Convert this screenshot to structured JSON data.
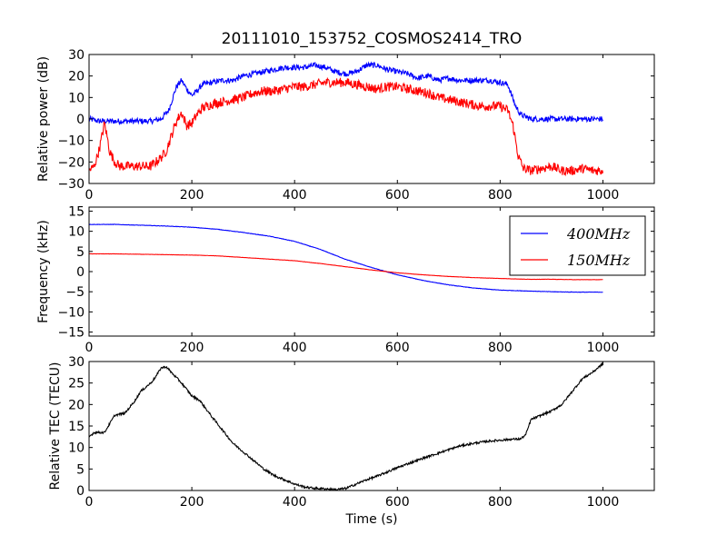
{
  "title": "20111010_153752_COSMOS2414_TRO",
  "chart_data": [
    {
      "type": "line",
      "xlabel": "",
      "ylabel": "Relative power (dB)",
      "xlim": [
        0,
        1100
      ],
      "ylim": [
        -30,
        30
      ],
      "xticks": [
        "0",
        "200",
        "400",
        "600",
        "800",
        "1000"
      ],
      "yticks": [
        "−30",
        "−20",
        "−10",
        "0",
        "10",
        "20",
        "30"
      ],
      "legend": [],
      "series": [
        {
          "color": "#0000ff",
          "noise": 1.3,
          "points": [
            [
              0,
              0
            ],
            [
              20,
              -1
            ],
            [
              40,
              -1
            ],
            [
              60,
              -1
            ],
            [
              80,
              -1
            ],
            [
              100,
              -1
            ],
            [
              120,
              -1
            ],
            [
              140,
              0
            ],
            [
              155,
              4
            ],
            [
              170,
              15
            ],
            [
              180,
              18
            ],
            [
              190,
              14
            ],
            [
              200,
              11
            ],
            [
              210,
              13
            ],
            [
              220,
              16
            ],
            [
              240,
              17
            ],
            [
              260,
              18
            ],
            [
              280,
              18
            ],
            [
              300,
              20
            ],
            [
              320,
              21
            ],
            [
              340,
              22
            ],
            [
              360,
              23
            ],
            [
              380,
              24
            ],
            [
              400,
              24
            ],
            [
              420,
              24
            ],
            [
              440,
              25
            ],
            [
              460,
              24
            ],
            [
              480,
              22
            ],
            [
              500,
              21
            ],
            [
              520,
              22
            ],
            [
              540,
              25
            ],
            [
              560,
              25
            ],
            [
              580,
              23
            ],
            [
              600,
              22
            ],
            [
              620,
              21
            ],
            [
              640,
              19
            ],
            [
              660,
              20
            ],
            [
              680,
              18
            ],
            [
              700,
              19
            ],
            [
              720,
              18
            ],
            [
              740,
              18
            ],
            [
              760,
              18
            ],
            [
              780,
              18
            ],
            [
              800,
              17
            ],
            [
              815,
              16
            ],
            [
              830,
              6
            ],
            [
              840,
              2
            ],
            [
              860,
              0
            ],
            [
              880,
              0
            ],
            [
              900,
              0
            ],
            [
              920,
              0
            ],
            [
              940,
              0
            ],
            [
              960,
              0
            ],
            [
              980,
              0
            ],
            [
              1000,
              0
            ]
          ]
        },
        {
          "color": "#ff0000",
          "noise": 2.2,
          "points": [
            [
              0,
              -24
            ],
            [
              10,
              -22
            ],
            [
              20,
              -14
            ],
            [
              30,
              -2
            ],
            [
              35,
              -8
            ],
            [
              40,
              -15
            ],
            [
              50,
              -20
            ],
            [
              60,
              -22
            ],
            [
              80,
              -22
            ],
            [
              100,
              -22
            ],
            [
              120,
              -22
            ],
            [
              140,
              -18
            ],
            [
              150,
              -15
            ],
            [
              160,
              -8
            ],
            [
              170,
              -1
            ],
            [
              180,
              3
            ],
            [
              190,
              -3
            ],
            [
              200,
              -2
            ],
            [
              210,
              2
            ],
            [
              220,
              5
            ],
            [
              240,
              7
            ],
            [
              260,
              8
            ],
            [
              280,
              9
            ],
            [
              300,
              10
            ],
            [
              320,
              12
            ],
            [
              340,
              13
            ],
            [
              360,
              13
            ],
            [
              380,
              14
            ],
            [
              400,
              15
            ],
            [
              420,
              15
            ],
            [
              440,
              16
            ],
            [
              460,
              17
            ],
            [
              480,
              17
            ],
            [
              500,
              17
            ],
            [
              520,
              16
            ],
            [
              540,
              15
            ],
            [
              560,
              14
            ],
            [
              580,
              15
            ],
            [
              600,
              15
            ],
            [
              620,
              14
            ],
            [
              640,
              13
            ],
            [
              660,
              12
            ],
            [
              680,
              10
            ],
            [
              700,
              9
            ],
            [
              720,
              8
            ],
            [
              740,
              7
            ],
            [
              760,
              6
            ],
            [
              780,
              6
            ],
            [
              800,
              6
            ],
            [
              815,
              4
            ],
            [
              825,
              -3
            ],
            [
              835,
              -17
            ],
            [
              845,
              -23
            ],
            [
              860,
              -24
            ],
            [
              880,
              -23
            ],
            [
              900,
              -22
            ],
            [
              920,
              -24
            ],
            [
              940,
              -24
            ],
            [
              960,
              -23
            ],
            [
              980,
              -24
            ],
            [
              1000,
              -24
            ]
          ]
        }
      ]
    },
    {
      "type": "line",
      "xlabel": "",
      "ylabel": "Frequency (kHz)",
      "xlim": [
        0,
        1100
      ],
      "ylim": [
        -16,
        16
      ],
      "xticks": [
        "0",
        "200",
        "400",
        "600",
        "800",
        "1000"
      ],
      "yticks": [
        "−15",
        "−10",
        "−5",
        "0",
        "5",
        "10",
        "15"
      ],
      "ytick_values": [
        -15,
        -10,
        -5,
        0,
        5,
        10,
        15
      ],
      "legend": [
        "400MHz",
        "150MHz"
      ],
      "legend_position": "top-right",
      "series": [
        {
          "name": "400MHz",
          "color": "#0000ff",
          "noise": 0.05,
          "points": [
            [
              0,
              11.7
            ],
            [
              50,
              11.7
            ],
            [
              100,
              11.5
            ],
            [
              150,
              11.3
            ],
            [
              200,
              11.0
            ],
            [
              250,
              10.5
            ],
            [
              300,
              9.7
            ],
            [
              350,
              8.8
            ],
            [
              400,
              7.5
            ],
            [
              450,
              5.5
            ],
            [
              500,
              3.0
            ],
            [
              550,
              1.0
            ],
            [
              600,
              -0.8
            ],
            [
              650,
              -2.2
            ],
            [
              700,
              -3.3
            ],
            [
              750,
              -4.1
            ],
            [
              800,
              -4.6
            ],
            [
              850,
              -4.8
            ],
            [
              900,
              -5.0
            ],
            [
              950,
              -5.1
            ],
            [
              1000,
              -5.1
            ]
          ]
        },
        {
          "name": "150MHz",
          "color": "#ff0000",
          "noise": 0.03,
          "points": [
            [
              0,
              4.4
            ],
            [
              50,
              4.4
            ],
            [
              100,
              4.3
            ],
            [
              150,
              4.2
            ],
            [
              200,
              4.1
            ],
            [
              250,
              3.9
            ],
            [
              300,
              3.5
            ],
            [
              350,
              3.1
            ],
            [
              400,
              2.7
            ],
            [
              450,
              2.0
            ],
            [
              500,
              1.2
            ],
            [
              550,
              0.4
            ],
            [
              600,
              -0.3
            ],
            [
              650,
              -0.8
            ],
            [
              700,
              -1.2
            ],
            [
              750,
              -1.5
            ],
            [
              800,
              -1.7
            ],
            [
              850,
              -1.9
            ],
            [
              900,
              -1.9
            ],
            [
              950,
              -2.0
            ],
            [
              1000,
              -2.0
            ]
          ]
        }
      ]
    },
    {
      "type": "line",
      "xlabel": "Time (s)",
      "ylabel": "Relative TEC (TECU)",
      "xlim": [
        0,
        1100
      ],
      "ylim": [
        0,
        30
      ],
      "xticks": [
        "0",
        "200",
        "400",
        "600",
        "800",
        "1000"
      ],
      "yticks": [
        "0",
        "5",
        "10",
        "15",
        "20",
        "25",
        "30"
      ],
      "legend": [],
      "series": [
        {
          "color": "#000000",
          "noise": 0.25,
          "points": [
            [
              0,
              12.5
            ],
            [
              10,
              13.5
            ],
            [
              30,
              13.5
            ],
            [
              40,
              15.5
            ],
            [
              50,
              17.5
            ],
            [
              70,
              18
            ],
            [
              90,
              21
            ],
            [
              100,
              23
            ],
            [
              110,
              24
            ],
            [
              120,
              25
            ],
            [
              130,
              26.5
            ],
            [
              140,
              28.5
            ],
            [
              150,
              28.8
            ],
            [
              160,
              27.5
            ],
            [
              180,
              25
            ],
            [
              200,
              22
            ],
            [
              215,
              21
            ],
            [
              240,
              17
            ],
            [
              260,
              14
            ],
            [
              280,
              11
            ],
            [
              300,
              9
            ],
            [
              320,
              7
            ],
            [
              340,
              5
            ],
            [
              360,
              3.5
            ],
            [
              380,
              2.5
            ],
            [
              400,
              1.5
            ],
            [
              420,
              0.8
            ],
            [
              440,
              0.5
            ],
            [
              460,
              0.4
            ],
            [
              480,
              0.2
            ],
            [
              500,
              0.5
            ],
            [
              520,
              1.5
            ],
            [
              540,
              2.5
            ],
            [
              560,
              3.3
            ],
            [
              580,
              4.3
            ],
            [
              600,
              5.3
            ],
            [
              620,
              6.2
            ],
            [
              650,
              7.5
            ],
            [
              680,
              8.7
            ],
            [
              700,
              9.5
            ],
            [
              720,
              10.3
            ],
            [
              740,
              10.8
            ],
            [
              760,
              11.2
            ],
            [
              780,
              11.5
            ],
            [
              800,
              11.7
            ],
            [
              820,
              11.9
            ],
            [
              840,
              12.0
            ],
            [
              850,
              13
            ],
            [
              860,
              16.5
            ],
            [
              880,
              17.5
            ],
            [
              900,
              18.5
            ],
            [
              920,
              20
            ],
            [
              940,
              23
            ],
            [
              960,
              26
            ],
            [
              980,
              27.5
            ],
            [
              1000,
              29.5
            ]
          ]
        }
      ]
    }
  ]
}
